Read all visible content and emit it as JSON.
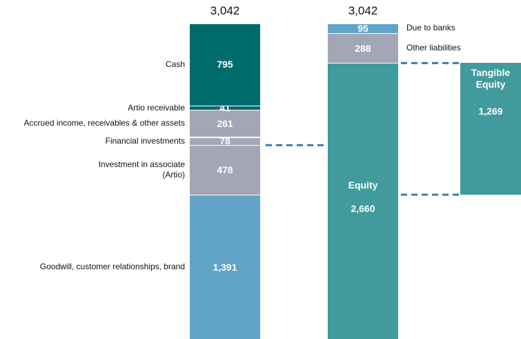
{
  "chart_data": {
    "type": "stacked_bar",
    "bars": [
      {
        "total": 3042,
        "total_label": "3,042",
        "segments": [
          {
            "name": "Goodwill, customer relationships, brand",
            "value": 1391,
            "value_label": "1,391",
            "color": "#62a3c9"
          },
          {
            "name": "Investment in associate\n(Artio)",
            "value": 478,
            "value_label": "478",
            "color": "#a3a6b4"
          },
          {
            "name": "Financial investments",
            "value": 78,
            "value_label": "78",
            "color": "#a3a6b4"
          },
          {
            "name": "Accrued income, receivables & other assets",
            "value": 261,
            "value_label": "261",
            "color": "#a3a6b4"
          },
          {
            "name": "Artio receivable",
            "value": 41,
            "value_label": "41",
            "color": "#006b6b"
          },
          {
            "name": "Cash",
            "value": 795,
            "value_label": "795",
            "color": "#006b6b"
          }
        ]
      },
      {
        "total": 3042,
        "total_label": "3,042",
        "segments": [
          {
            "name": "Equity",
            "value": 2660,
            "value_label": "2,660",
            "color": "#419b9c"
          },
          {
            "name": "Other liabilities",
            "value": 288,
            "value_label": "288",
            "color": "#a3a6b4"
          },
          {
            "name": "Due to banks",
            "value": 95,
            "value_label": "95",
            "color": "#62a3c9"
          }
        ]
      }
    ],
    "tangible": {
      "name": "Tangible\nEquity",
      "value": 1269,
      "value_label": "1,269",
      "color": "#419b9c"
    }
  }
}
